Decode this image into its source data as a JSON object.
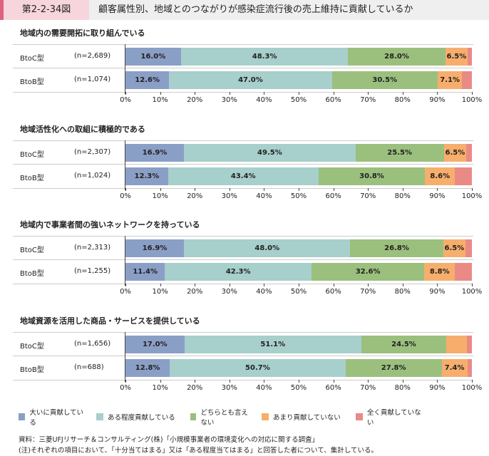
{
  "header": {
    "figure_no": "第2-2-34図",
    "title": "顧客属性別、地域とのつながりが感染症流行後の売上維持に貢献しているか"
  },
  "chart_data": {
    "type": "bar",
    "stacked": true,
    "orientation": "horizontal",
    "xlim": [
      0,
      100
    ],
    "x_ticks": [
      "0%",
      "10%",
      "20%",
      "30%",
      "40%",
      "50%",
      "60%",
      "70%",
      "80%",
      "90%",
      "100%"
    ],
    "legend_position": "bottom",
    "series_names": [
      "大いに貢献している",
      "ある程度貢献している",
      "どちらとも言えない",
      "あまり貢献していない",
      "全く貢献していない"
    ],
    "colors": [
      "#8a9fc6",
      "#a7cfcb",
      "#9bc07d",
      "#f7ae6c",
      "#e98a87"
    ],
    "panels": [
      {
        "title": "地域内の需要開拓に取り組んでいる",
        "rows": [
          {
            "label": "BtoC型",
            "n": "(n=2,689)",
            "values": [
              16.0,
              48.3,
              28.0,
              6.5,
              1.2
            ],
            "labels": [
              "16.0%",
              "48.3%",
              "28.0%",
              "6.5%",
              ""
            ]
          },
          {
            "label": "BtoB型",
            "n": "(n=1,074)",
            "values": [
              12.6,
              47.0,
              30.5,
              7.1,
              2.8
            ],
            "labels": [
              "12.6%",
              "47.0%",
              "30.5%",
              "7.1%",
              ""
            ]
          }
        ]
      },
      {
        "title": "地域活性化への取組に積極的である",
        "rows": [
          {
            "label": "BtoC型",
            "n": "(n=2,307)",
            "values": [
              16.9,
              49.5,
              25.5,
              6.5,
              1.6
            ],
            "labels": [
              "16.9%",
              "49.5%",
              "25.5%",
              "6.5%",
              ""
            ]
          },
          {
            "label": "BtoB型",
            "n": "(n=1,024)",
            "values": [
              12.3,
              43.4,
              30.8,
              8.6,
              4.9
            ],
            "labels": [
              "12.3%",
              "43.4%",
              "30.8%",
              "8.6%",
              ""
            ]
          }
        ]
      },
      {
        "title": "地域内で事業者間の強いネットワークを持っている",
        "rows": [
          {
            "label": "BtoC型",
            "n": "(n=2,313)",
            "values": [
              16.9,
              48.0,
              26.8,
              6.5,
              1.8
            ],
            "labels": [
              "16.9%",
              "48.0%",
              "26.8%",
              "6.5%",
              ""
            ]
          },
          {
            "label": "BtoB型",
            "n": "(n=1,255)",
            "values": [
              11.4,
              42.3,
              32.6,
              8.8,
              4.9
            ],
            "labels": [
              "11.4%",
              "42.3%",
              "32.6%",
              "8.8%",
              ""
            ]
          }
        ]
      },
      {
        "title": "地域資源を活用した商品・サービスを提供している",
        "rows": [
          {
            "label": "BtoC型",
            "n": "(n=1,656)",
            "values": [
              17.0,
              51.1,
              24.5,
              6.0,
              1.4
            ],
            "labels": [
              "17.0%",
              "51.1%",
              "24.5%",
              "",
              ""
            ]
          },
          {
            "label": "BtoB型",
            "n": "(n=688)",
            "values": [
              12.8,
              50.7,
              27.8,
              7.4,
              1.3
            ],
            "labels": [
              "12.8%",
              "50.7%",
              "27.8%",
              "7.4%",
              ""
            ]
          }
        ]
      }
    ]
  },
  "footer": {
    "source": "資料：三菱UFJリサーチ＆コンサルティング(株)「小規模事業者の環境変化への対応に関する調査」",
    "note": "(注)それぞれの項目において、「十分当てはまる」又は「ある程度当てはまる」と回答した者について、集計している。"
  }
}
